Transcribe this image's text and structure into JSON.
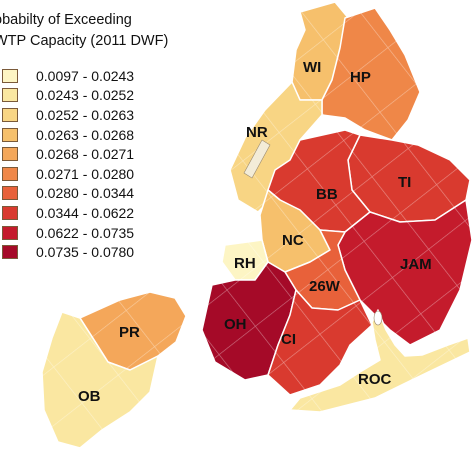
{
  "legend": {
    "title_line1": "obabilty of Exceeding",
    "title_line2": "WTP Capacity (2011 DWF)",
    "items": [
      {
        "label": "0.0097 - 0.0243",
        "color": "#fdf5c4"
      },
      {
        "label": "0.0243 - 0.0252",
        "color": "#fae7a1"
      },
      {
        "label": "0.0252 - 0.0263",
        "color": "#f8d584"
      },
      {
        "label": "0.0263 - 0.0268",
        "color": "#f6c06c"
      },
      {
        "label": "0.0268 - 0.0271",
        "color": "#f4a75a"
      },
      {
        "label": "0.0271 - 0.0280",
        "color": "#ef8748"
      },
      {
        "label": "0.0280 - 0.0344",
        "color": "#e8613a"
      },
      {
        "label": "0.0344 - 0.0622",
        "color": "#d93a2f"
      },
      {
        "label": "0.0622 - 0.0735",
        "color": "#c41b2c"
      },
      {
        "label": "0.0735 - 0.0780",
        "color": "#a50a28"
      }
    ]
  },
  "regions": [
    {
      "code": "WI",
      "class_index": 3
    },
    {
      "code": "HP",
      "class_index": 5
    },
    {
      "code": "NR",
      "class_index": 2
    },
    {
      "code": "BB",
      "class_index": 7
    },
    {
      "code": "TI",
      "class_index": 7
    },
    {
      "code": "NC",
      "class_index": 3
    },
    {
      "code": "RH",
      "class_index": 0
    },
    {
      "code": "JAM",
      "class_index": 8
    },
    {
      "code": "26W",
      "class_index": 6
    },
    {
      "code": "OH",
      "class_index": 9
    },
    {
      "code": "CI",
      "class_index": 7
    },
    {
      "code": "PR",
      "class_index": 4
    },
    {
      "code": "OB",
      "class_index": 1
    },
    {
      "code": "ROC",
      "class_index": 1
    }
  ],
  "colors": {
    "border": "#ffffff",
    "outline": "#6b5a48",
    "grid": "#ffffff"
  }
}
